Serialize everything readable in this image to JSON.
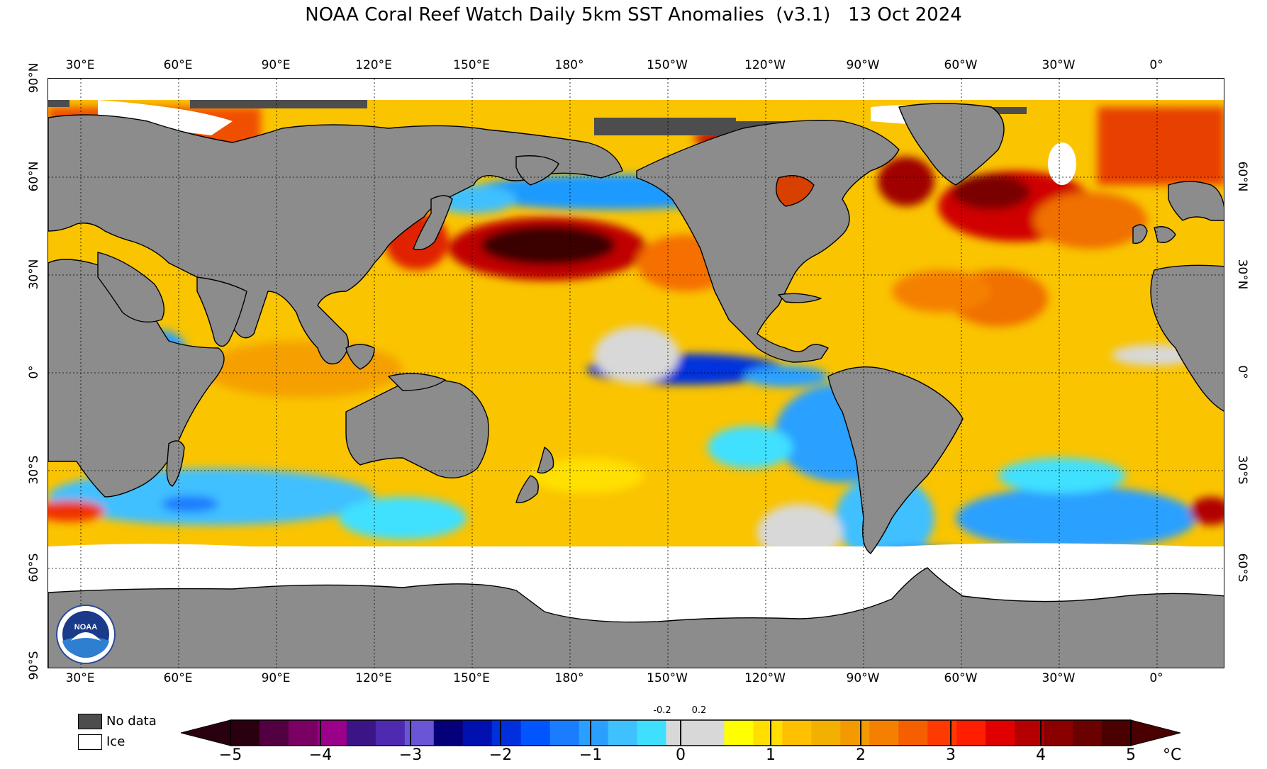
{
  "title": "NOAA Coral Reef Watch Daily 5km SST Anomalies  (v3.1)   13 Oct 2024",
  "longitude_labels": [
    "30°E",
    "60°E",
    "90°E",
    "120°E",
    "150°E",
    "180°",
    "150°W",
    "120°W",
    "90°W",
    "60°W",
    "30°W",
    "0°"
  ],
  "latitude_labels_left": [
    "90°N",
    "60°N",
    "30°N",
    "0°",
    "30°S",
    "60°S",
    "90°S"
  ],
  "latitude_labels_right": [
    "60°N",
    "30°N",
    "0°",
    "30°S",
    "60°S"
  ],
  "legend": {
    "no_data": "No data",
    "ice": "Ice"
  },
  "colorbar": {
    "ticks": [
      "−5",
      "−4",
      "−3",
      "−2",
      "−1",
      "0",
      "1",
      "2",
      "3",
      "4",
      "5"
    ],
    "small_ticks": [
      "-0.2",
      "0.2"
    ],
    "unit": "°C",
    "colors": [
      "#2a0010",
      "#520042",
      "#7a0064",
      "#9a008a",
      "#3b1585",
      "#4e2ab0",
      "#6a55d6",
      "#05007a",
      "#0011b0",
      "#0030dd",
      "#0055ff",
      "#1a7dff",
      "#29a0ff",
      "#3fc0ff",
      "#3fe0ff",
      "#d8d8d8",
      "#d8d8d8",
      "#ffff00",
      "#ffde00",
      "#ffc000",
      "#f2b000",
      "#f39a00",
      "#f58000",
      "#f55f00",
      "#ff3a00",
      "#ff1e00",
      "#e00000",
      "#b40000",
      "#8a0000",
      "#6a0000",
      "#4a0000"
    ]
  },
  "colors": {
    "land": "#8c8c8c",
    "no_data": "#4d4d4d",
    "ice": "#ffffff",
    "ocean_base": "#f9c400"
  },
  "logo_text": "NOAA"
}
